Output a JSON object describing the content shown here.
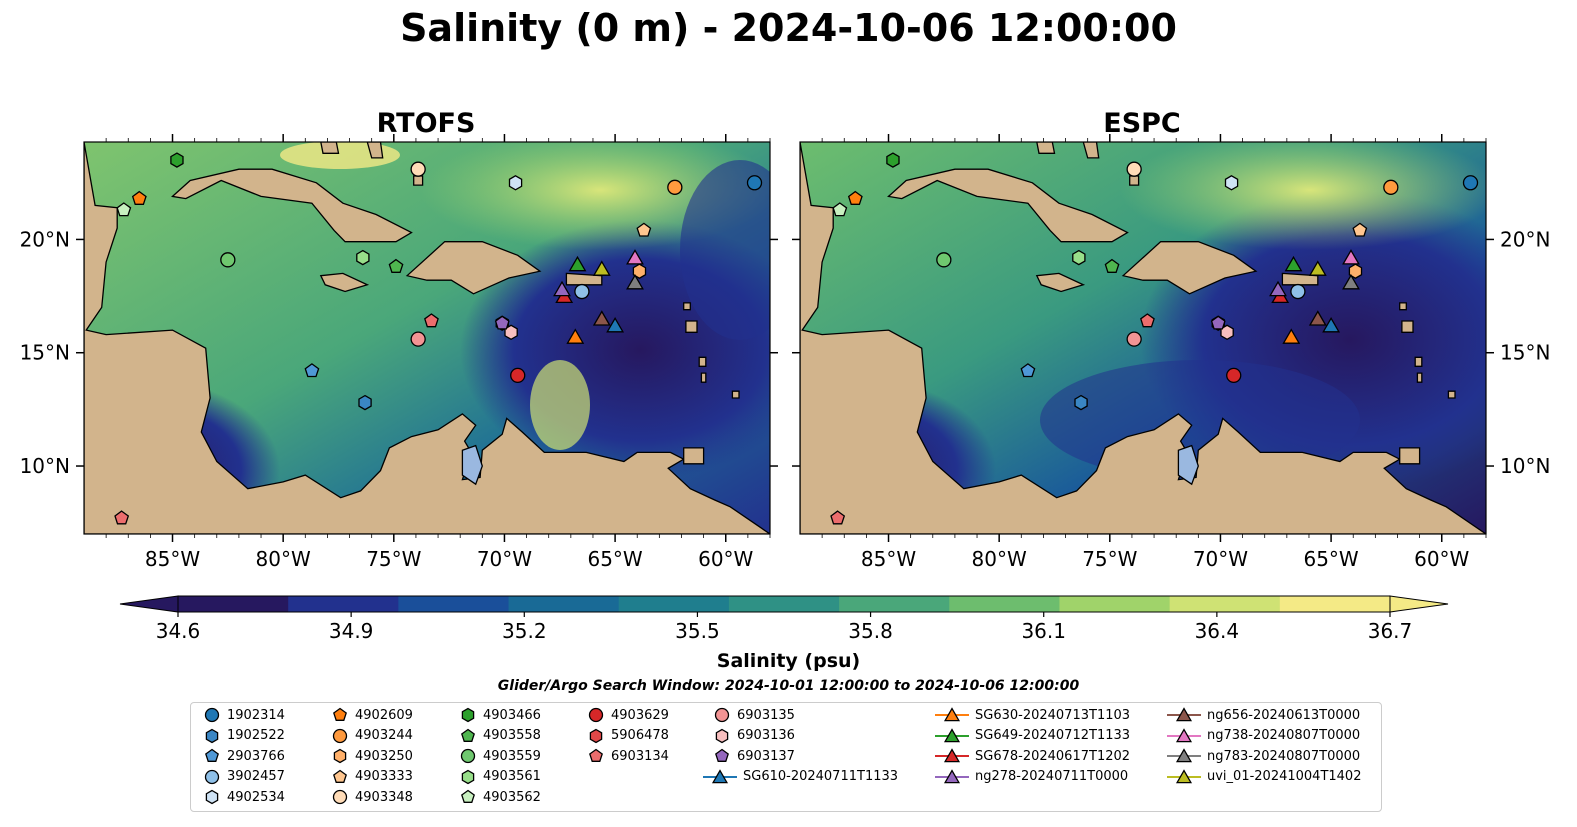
{
  "title": "Salinity (0 m) - 2024-10-06 12:00:00",
  "panels": [
    {
      "title": "RTOFS"
    },
    {
      "title": "ESPC"
    }
  ],
  "lon_ticks": [
    "85°W",
    "80°W",
    "75°W",
    "70°W",
    "65°W",
    "60°W"
  ],
  "lat_ticks": [
    "20°N",
    "15°N",
    "10°N"
  ],
  "colorbar": {
    "label": "Salinity (psu)",
    "min": 34.6,
    "max": 36.7,
    "ticks": [
      "34.6",
      "34.9",
      "35.2",
      "35.5",
      "35.8",
      "36.1",
      "36.4",
      "36.7"
    ],
    "colors": [
      "#26185f",
      "#22318e",
      "#1a4f9a",
      "#196a96",
      "#1f7e8e",
      "#2f9185",
      "#4aa77a",
      "#6dbd6e",
      "#a0d36a",
      "#cfe274",
      "#f4ea86"
    ]
  },
  "search_window": "Glider/Argo Search Window: 2024-10-01 12:00:00 to 2024-10-06 12:00:00",
  "legend": [
    {
      "label": "1902314",
      "marker": "circle",
      "color": "#1f77b4"
    },
    {
      "label": "1902522",
      "marker": "hexagon",
      "color": "#3a86c4"
    },
    {
      "label": "2903766",
      "marker": "pentagon",
      "color": "#4f98d6"
    },
    {
      "label": "3902457",
      "marker": "circle",
      "color": "#8fc0e8"
    },
    {
      "label": "4902534",
      "marker": "hexagon",
      "color": "#cfe3f5"
    },
    {
      "label": "4902609",
      "marker": "pentagon",
      "color": "#ff7f0e"
    },
    {
      "label": "4903244",
      "marker": "circle",
      "color": "#ff9a3e"
    },
    {
      "label": "4903250",
      "marker": "hexagon",
      "color": "#ffb06a"
    },
    {
      "label": "4903333",
      "marker": "pentagon",
      "color": "#ffc68f"
    },
    {
      "label": "4903348",
      "marker": "circle",
      "color": "#ffdcb8"
    },
    {
      "label": "4903466",
      "marker": "hexagon",
      "color": "#2ca02c"
    },
    {
      "label": "4903558",
      "marker": "pentagon",
      "color": "#4fb64f"
    },
    {
      "label": "4903559",
      "marker": "circle",
      "color": "#6fc86f"
    },
    {
      "label": "4903561",
      "marker": "hexagon",
      "color": "#98df8a"
    },
    {
      "label": "4903562",
      "marker": "pentagon",
      "color": "#c8f0c0"
    },
    {
      "label": "4903629",
      "marker": "circle",
      "color": "#d62728"
    },
    {
      "label": "5906478",
      "marker": "hexagon",
      "color": "#e04848"
    },
    {
      "label": "6903134",
      "marker": "pentagon",
      "color": "#ec6d6d"
    },
    {
      "label": "6903135",
      "marker": "circle",
      "color": "#f29494"
    },
    {
      "label": "6903136",
      "marker": "hexagon",
      "color": "#f8bfbf"
    },
    {
      "label": "6903137",
      "marker": "pentagon",
      "color": "#9467bd"
    },
    {
      "label": "SG610-20240711T1133",
      "marker": "triangle",
      "color": "#1f77b4"
    },
    {
      "label": "SG630-20240713T1103",
      "marker": "triangle",
      "color": "#ff7f0e"
    },
    {
      "label": "SG649-20240712T1133",
      "marker": "triangle",
      "color": "#2ca02c"
    },
    {
      "label": "SG678-20240617T1202",
      "marker": "triangle",
      "color": "#d62728"
    },
    {
      "label": "ng278-20240711T0000",
      "marker": "triangle",
      "color": "#9467bd"
    },
    {
      "label": "ng656-20240613T0000",
      "marker": "triangle",
      "color": "#8c564b"
    },
    {
      "label": "ng738-20240807T0000",
      "marker": "triangle",
      "color": "#e377c2"
    },
    {
      "label": "ng783-20240807T0000",
      "marker": "triangle",
      "color": "#7f7f7f"
    },
    {
      "label": "uvi_01-20241004T1402",
      "marker": "triangle",
      "color": "#bcbd22"
    }
  ],
  "floats": [
    {
      "id": "1902314",
      "lon": -58.7,
      "lat": 22.5
    },
    {
      "id": "1902522",
      "lon": -76.3,
      "lat": 12.8
    },
    {
      "id": "2903766",
      "lon": -78.7,
      "lat": 14.2
    },
    {
      "id": "3902457",
      "lon": -66.5,
      "lat": 17.7
    },
    {
      "id": "4902534",
      "lon": -69.5,
      "lat": 22.5
    },
    {
      "id": "4902609",
      "lon": -86.5,
      "lat": 21.8
    },
    {
      "id": "4903244",
      "lon": -62.3,
      "lat": 22.3
    },
    {
      "id": "4903250",
      "lon": -63.9,
      "lat": 18.6
    },
    {
      "id": "4903333",
      "lon": -63.7,
      "lat": 20.4
    },
    {
      "id": "4903348",
      "lon": -73.9,
      "lat": 23.1
    },
    {
      "id": "4903466",
      "lon": -84.8,
      "lat": 23.5
    },
    {
      "id": "4903558",
      "lon": -74.9,
      "lat": 18.8
    },
    {
      "id": "4903559",
      "lon": -82.5,
      "lat": 19.1
    },
    {
      "id": "4903561",
      "lon": -76.4,
      "lat": 19.2
    },
    {
      "id": "4903562",
      "lon": -87.2,
      "lat": 21.3
    },
    {
      "id": "4903629",
      "lon": -69.4,
      "lat": 14.0
    },
    {
      "id": "5906478",
      "lon": -70.1,
      "lat": 16.3
    },
    {
      "id": "6903134",
      "lon": -73.3,
      "lat": 16.4
    },
    {
      "id": "6903135",
      "lon": -73.9,
      "lat": 15.6
    },
    {
      "id": "6903136",
      "lon": -69.7,
      "lat": 15.9
    },
    {
      "id": "6903137",
      "lon": -70.1,
      "lat": 16.3
    },
    {
      "id": "6903134",
      "lon": -87.3,
      "lat": 7.7
    }
  ],
  "gliders": [
    {
      "id": "SG610-20240711T1133",
      "lon": -65.0,
      "lat": 16.2
    },
    {
      "id": "SG630-20240713T1103",
      "lon": -66.8,
      "lat": 15.7
    },
    {
      "id": "SG649-20240712T1133",
      "lon": -66.7,
      "lat": 18.9
    },
    {
      "id": "SG678-20240617T1202",
      "lon": -67.3,
      "lat": 17.5
    },
    {
      "id": "ng278-20240711T0000",
      "lon": -67.4,
      "lat": 17.8
    },
    {
      "id": "ng656-20240613T0000",
      "lon": -65.6,
      "lat": 16.5
    },
    {
      "id": "ng738-20240807T0000",
      "lon": -64.1,
      "lat": 19.2
    },
    {
      "id": "ng783-20240807T0000",
      "lon": -64.1,
      "lat": 18.1
    },
    {
      "id": "uvi_01-20241004T1402",
      "lon": -65.6,
      "lat": 18.7
    }
  ]
}
